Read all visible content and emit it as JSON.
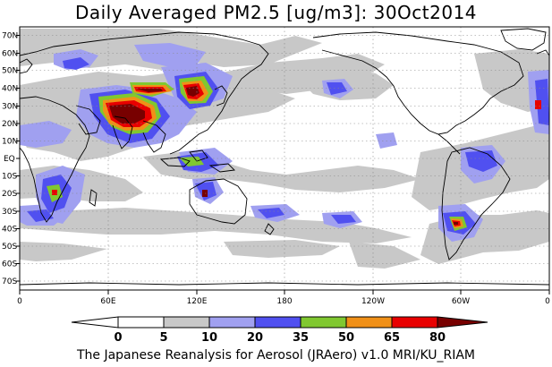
{
  "title": "Daily Averaged PM2.5 [ug/m3]: 30Oct2014",
  "footer": "The Japanese Reanalysis for Aerosol (JRAero) v1.0 MRI/KU_RIAM",
  "map": {
    "lat_labels": [
      "70N",
      "60N",
      "50N",
      "40N",
      "30N",
      "20N",
      "10N",
      "EQ",
      "10S",
      "20S",
      "30S",
      "40S",
      "50S",
      "60S",
      "70S"
    ],
    "lon_labels": [
      "0",
      "60E",
      "120E",
      "180",
      "120W",
      "60W",
      "0"
    ],
    "grid": "dotted"
  },
  "colorbar": {
    "thresholds": [
      "0",
      "5",
      "10",
      "20",
      "35",
      "50",
      "65",
      "80"
    ],
    "colors": [
      "#ffffff",
      "#c8c8c8",
      "#a0a0f0",
      "#5050f0",
      "#80c830",
      "#f09018",
      "#e80000",
      "#780000"
    ]
  },
  "colors": {
    "c0": "#ffffff",
    "c5": "#c8c8c8",
    "c10": "#a0a0f0",
    "c20": "#5050f0",
    "c35": "#80c830",
    "c50": "#f09018",
    "c65": "#e80000",
    "c80": "#780000"
  }
}
